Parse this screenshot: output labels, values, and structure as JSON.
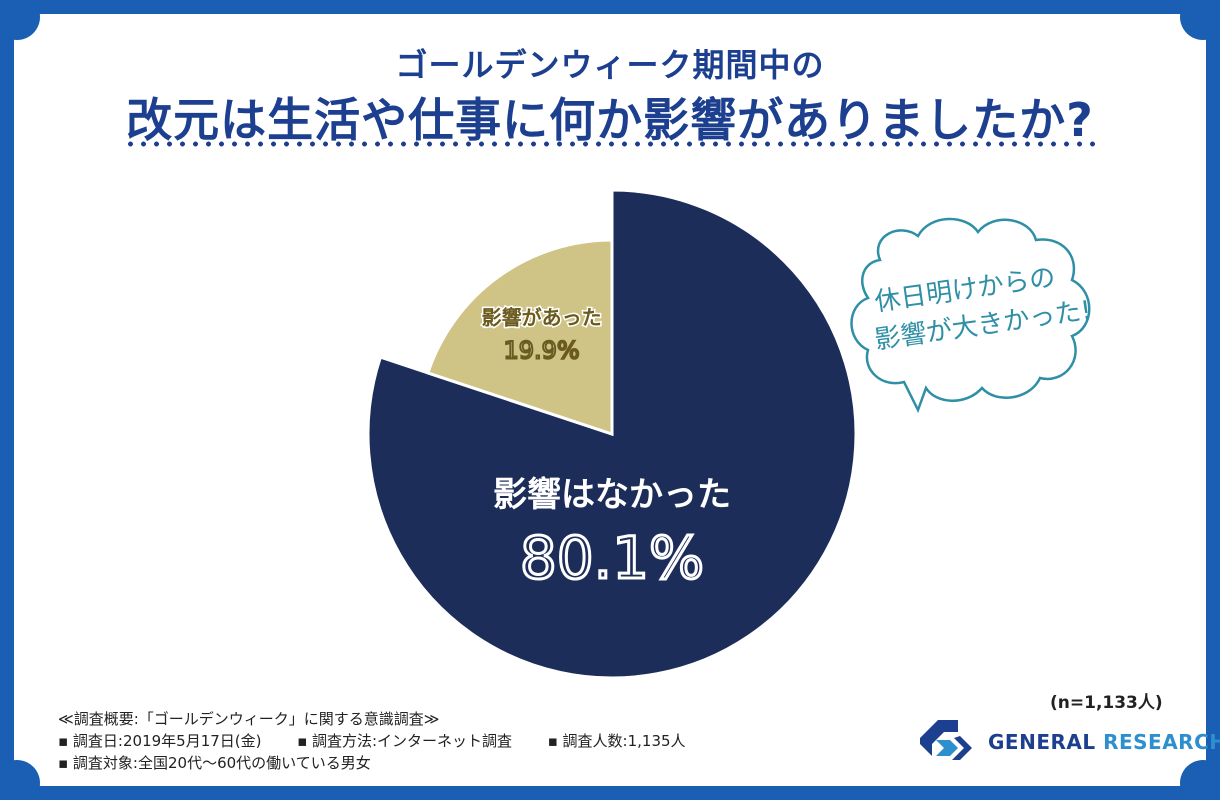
{
  "header": {
    "title_line1": "ゴールデンウィーク期間中の",
    "title_line2": "改元は生活や仕事に何か影響がありましたか?"
  },
  "chart_data": {
    "type": "pie",
    "slices": [
      {
        "label": "影響はなかった",
        "value": 80.1,
        "value_label": "80.1%",
        "color": "#1d2d5a"
      },
      {
        "label": "影響があった",
        "value": 19.9,
        "value_label": "19.9%",
        "color": "#cfc485"
      }
    ]
  },
  "callout": {
    "line1": "休日明けからの",
    "line2": "影響が大きかった!"
  },
  "sample_size": "(n=1,133人)",
  "survey_notes": {
    "heading": "≪調査概要:「ゴールデンウィーク」に関する意識調査≫",
    "date": "▪ 調査日:2019年5月17日(金)",
    "method": "▪ 調査方法:インターネット調査",
    "count": "▪ 調査人数:1,135人",
    "target": "▪ 調査対象:全国20代〜60代の働いている男女"
  },
  "brand": {
    "name_part1": "GENERAL",
    "name_part2": "RESEARCH",
    "colors": {
      "primary": "#1d3f8f",
      "accent": "#2e8fcf"
    }
  }
}
